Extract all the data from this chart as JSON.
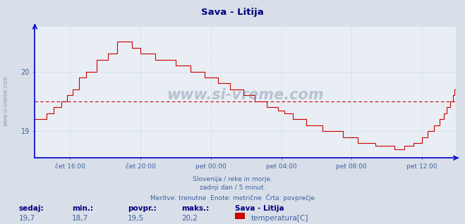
{
  "title": "Sava - Litija",
  "title_color": "#000080",
  "bg_color": "#d8dfe8",
  "plot_bg_color": "#e8eef4",
  "grid_color": "#b8c8d8",
  "line_color": "#cc0000",
  "avg_line_color": "#cc0000",
  "avg_value": 19.5,
  "y_min": 18.55,
  "y_max": 20.75,
  "yticks": [
    19,
    20
  ],
  "xlabel_color": "#4060a0",
  "xtick_labels": [
    "čet 16:00",
    "čet 20:00",
    "pet 00:00",
    "pet 04:00",
    "pet 08:00",
    "pet 12:00"
  ],
  "footer_lines": [
    "Slovenija / reke in morje.",
    "zadnji dan / 5 minut.",
    "Meritve: trenutne  Enote: metrične  Črta: povprečje"
  ],
  "footer_color": "#4060a0",
  "stats_labels": [
    "sedaj:",
    "min.:",
    "povpr.:",
    "maks.:"
  ],
  "stats_values": [
    "19,7",
    "18,7",
    "19,5",
    "20,2"
  ],
  "stats_label_color": "#000080",
  "stats_value_color": "#4060a0",
  "legend_label": "temperatura[C]",
  "legend_title": "Sava - Litija",
  "legend_color": "#cc0000",
  "watermark": "www.si-vreme.com",
  "num_points": 288,
  "axis_color": "#0000cc",
  "spine_color": "#8090b0"
}
